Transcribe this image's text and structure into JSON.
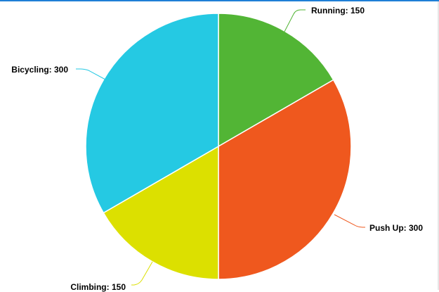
{
  "chart_data": {
    "type": "pie",
    "slices": [
      {
        "label": "Running",
        "value": 150,
        "color": "#52b535"
      },
      {
        "label": "Push Up",
        "value": 300,
        "color": "#ef581e"
      },
      {
        "label": "Climbing",
        "value": 150,
        "color": "#dce000"
      },
      {
        "label": "Bicycling",
        "value": 300,
        "color": "#25c9e3"
      }
    ],
    "data_labels": [
      "Running: 150",
      "Push Up: 300",
      "Climbing: 150",
      "Bicycling: 300"
    ],
    "start_angle": "12 o'clock",
    "direction": "clockwise",
    "legend": "none"
  }
}
